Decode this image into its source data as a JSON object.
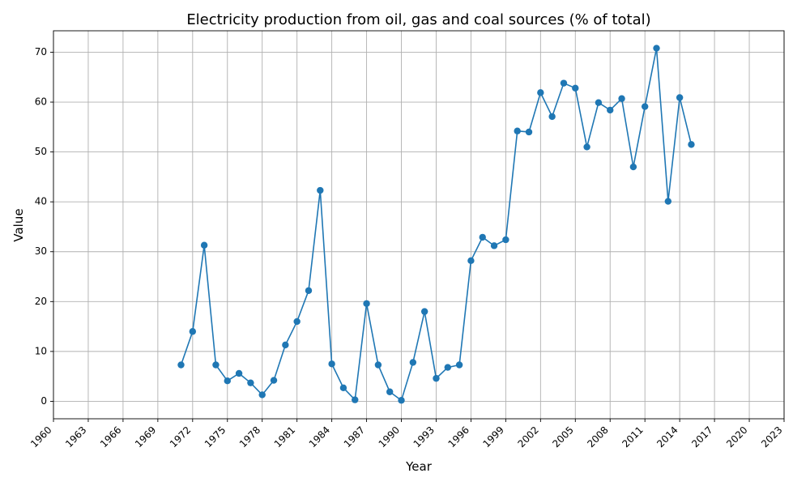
{
  "chart_data": {
    "type": "line",
    "title": "Electricity production from oil, gas and coal sources (% of total)",
    "xlabel": "Year",
    "ylabel": "Value",
    "xlim": [
      1960,
      2023
    ],
    "ylim": [
      -3.5,
      74.3
    ],
    "grid": true,
    "marker": "circle",
    "line_color": "#1f77b4",
    "x_ticks": [
      1960,
      1963,
      1966,
      1969,
      1972,
      1975,
      1978,
      1981,
      1984,
      1987,
      1990,
      1993,
      1996,
      1999,
      2002,
      2005,
      2008,
      2011,
      2014,
      2017,
      2020,
      2023
    ],
    "y_ticks": [
      0,
      10,
      20,
      30,
      40,
      50,
      60,
      70
    ],
    "x": [
      1971,
      1972,
      1973,
      1974,
      1975,
      1976,
      1977,
      1978,
      1979,
      1980,
      1981,
      1982,
      1983,
      1984,
      1985,
      1986,
      1987,
      1988,
      1989,
      1990,
      1991,
      1992,
      1993,
      1994,
      1995,
      1996,
      1997,
      1998,
      1999,
      2000,
      2001,
      2002,
      2003,
      2004,
      2005,
      2006,
      2007,
      2008,
      2009,
      2010,
      2011,
      2012,
      2013,
      2014,
      2015
    ],
    "y": [
      7.3,
      14.0,
      31.3,
      7.3,
      4.1,
      5.6,
      3.7,
      1.3,
      4.2,
      11.3,
      16.0,
      22.2,
      42.3,
      7.5,
      2.7,
      0.3,
      19.6,
      7.3,
      1.9,
      0.2,
      7.8,
      18.0,
      4.6,
      6.8,
      7.3,
      28.2,
      32.9,
      31.2,
      32.4,
      54.2,
      54.0,
      61.9,
      57.1,
      63.8,
      62.8,
      51.0,
      59.9,
      58.4,
      60.7,
      47.0,
      59.1,
      70.8,
      40.1,
      60.9,
      51.5
    ]
  }
}
